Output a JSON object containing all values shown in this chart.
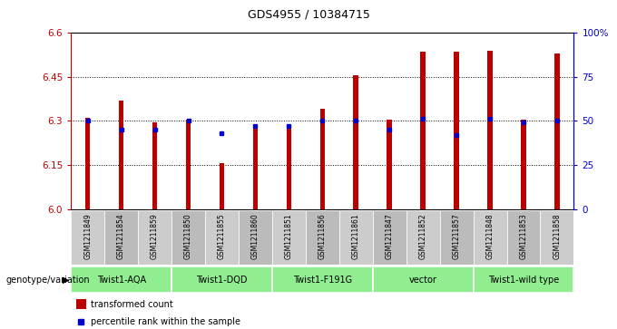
{
  "title": "GDS4955 / 10384715",
  "samples": [
    "GSM1211849",
    "GSM1211854",
    "GSM1211859",
    "GSM1211850",
    "GSM1211855",
    "GSM1211860",
    "GSM1211851",
    "GSM1211856",
    "GSM1211861",
    "GSM1211847",
    "GSM1211852",
    "GSM1211857",
    "GSM1211848",
    "GSM1211853",
    "GSM1211858"
  ],
  "red_values": [
    6.31,
    6.37,
    6.295,
    6.305,
    6.155,
    6.28,
    6.275,
    6.34,
    6.455,
    6.305,
    6.535,
    6.535,
    6.54,
    6.305,
    6.53
  ],
  "blue_values": [
    50,
    45,
    45,
    50,
    43,
    47,
    47,
    50,
    50,
    45,
    51,
    42,
    51,
    49,
    50
  ],
  "groups": [
    {
      "label": "Twist1-AQA",
      "start": 0,
      "end": 3,
      "color": "#90ee90"
    },
    {
      "label": "Twist1-DQD",
      "start": 3,
      "end": 6,
      "color": "#90ee90"
    },
    {
      "label": "Twist1-F191G",
      "start": 6,
      "end": 9,
      "color": "#90ee90"
    },
    {
      "label": "vector",
      "start": 9,
      "end": 12,
      "color": "#90ee90"
    },
    {
      "label": "Twist1-wild type",
      "start": 12,
      "end": 15,
      "color": "#90ee90"
    }
  ],
  "ylim_left": [
    6.0,
    6.6
  ],
  "ylim_right": [
    0,
    100
  ],
  "yticks_left": [
    6.0,
    6.15,
    6.3,
    6.45,
    6.6
  ],
  "yticks_right": [
    0,
    25,
    50,
    75,
    100
  ],
  "ytick_labels_right": [
    "0",
    "25",
    "50",
    "75",
    "100%"
  ],
  "bar_color": "#bb0000",
  "dot_color": "#0000cc",
  "background_color": "#ffffff",
  "plot_bg_color": "#ffffff",
  "legend_red": "transformed count",
  "legend_blue": "percentile rank within the sample",
  "genotype_label": "genotype/variation",
  "bar_width": 0.15,
  "sample_bg_odd": "#cccccc",
  "sample_bg_even": "#bbbbbb"
}
